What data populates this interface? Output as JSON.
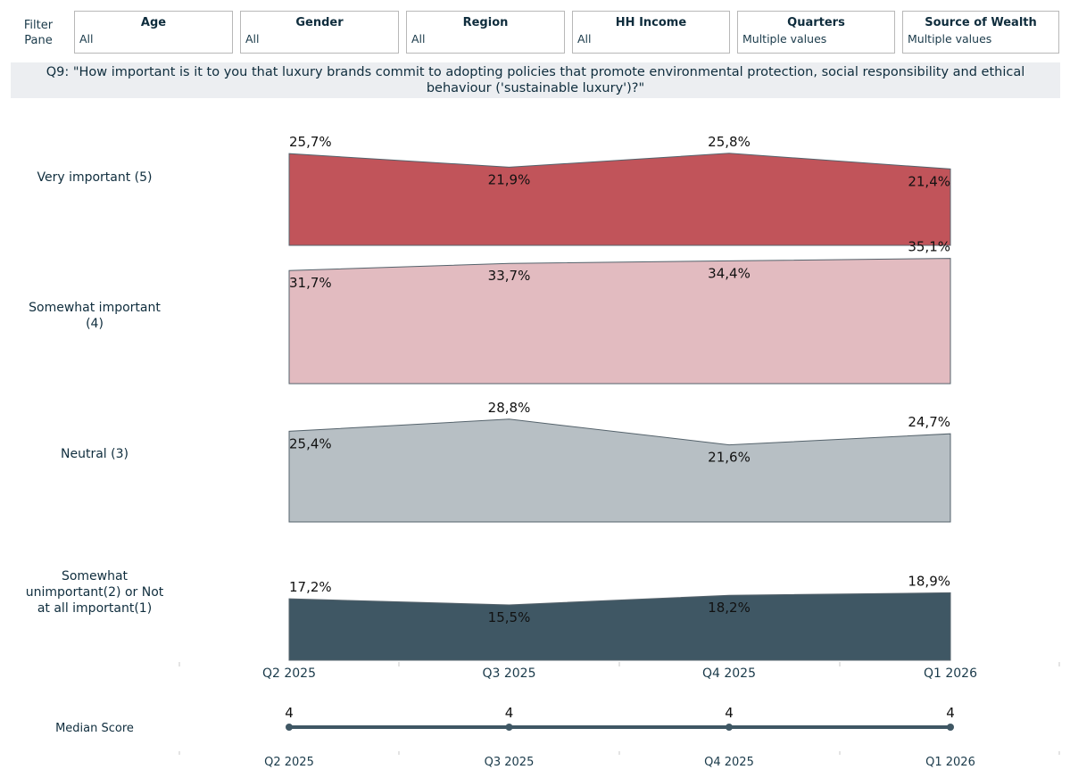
{
  "filter_pane": {
    "label_line1": "Filter",
    "label_line2": "Pane"
  },
  "filters": [
    {
      "title": "Age",
      "value": "All"
    },
    {
      "title": "Gender",
      "value": "All"
    },
    {
      "title": "Region",
      "value": "All"
    },
    {
      "title": "HH Income",
      "value": "All"
    },
    {
      "title": "Quarters",
      "value": "Multiple values"
    },
    {
      "title": "Source of Wealth",
      "value": "Multiple values"
    }
  ],
  "question": {
    "line1": "Q9: \"How important is it to you that luxury brands commit to adopting policies that promote environmental protection, social responsibility and ethical",
    "line2": "behaviour ('sustainable luxury')?\""
  },
  "colors": {
    "very_important": "#c1545a",
    "somewhat_important": "#e2bbc0",
    "neutral": "#b7bfc4",
    "unimportant": "#3f5764",
    "median_line": "#3f5764",
    "outline": "#55636c"
  },
  "chart_data": {
    "type": "area",
    "x": [
      "Q2 2025",
      "Q3 2025",
      "Q4 2025",
      "Q1 2026"
    ],
    "series": [
      {
        "key": "very_important",
        "name_lines": [
          "Very important (5)"
        ],
        "values": [
          25.7,
          21.9,
          25.8,
          21.4
        ],
        "labels": [
          "25,7%",
          "21,9%",
          "25,8%",
          "21,4%"
        ]
      },
      {
        "key": "somewhat_important",
        "name_lines": [
          "Somewhat important",
          "(4)"
        ],
        "values": [
          31.7,
          33.7,
          34.4,
          35.1
        ],
        "labels": [
          "31,7%",
          "33,7%",
          "34,4%",
          "35,1%"
        ]
      },
      {
        "key": "neutral",
        "name_lines": [
          "Neutral (3)"
        ],
        "values": [
          25.4,
          28.8,
          21.6,
          24.7
        ],
        "labels": [
          "25,4%",
          "28,8%",
          "21,6%",
          "24,7%"
        ]
      },
      {
        "key": "unimportant",
        "name_lines": [
          "Somewhat",
          "unimportant(2) or Not",
          "at all important(1)"
        ],
        "values": [
          17.2,
          15.5,
          18.2,
          18.9
        ],
        "labels": [
          "17,2%",
          "15,5%",
          "18,2%",
          "18,9%"
        ]
      }
    ],
    "median": {
      "label": "Median Score",
      "values": [
        4,
        4,
        4,
        4
      ],
      "labels": [
        "4",
        "4",
        "4",
        "4"
      ]
    }
  }
}
